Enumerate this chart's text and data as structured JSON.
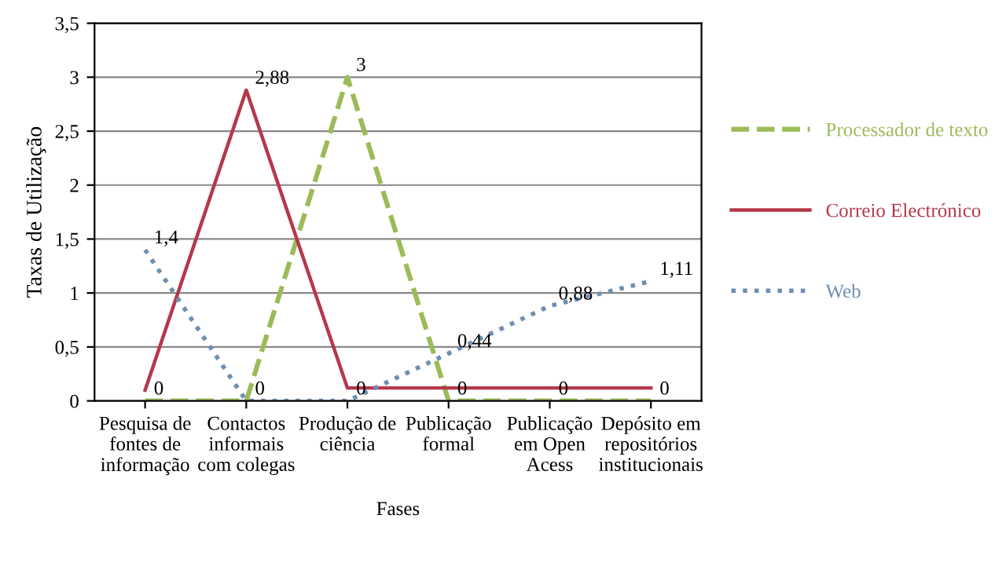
{
  "chart_data": {
    "type": "line",
    "xlabel": "Fases",
    "ylabel": "Taxas de Utilização",
    "categories": [
      "Pesquisa de\nfontes de\ninformação",
      "Contactos\ninformais\ncom colegas",
      "Produção de\nciência",
      "Publicação\nformal",
      "Publicação\nem Open\nAcess",
      "Depósito em\nrepositórios\ninstitucionais"
    ],
    "series": [
      {
        "name": "Processador de texto",
        "color": "#9bbb59",
        "line_style": "dashed",
        "values": [
          0,
          0,
          3,
          0,
          0,
          0
        ],
        "value_labels": [
          "0",
          null,
          "3",
          "0",
          "0",
          "0"
        ]
      },
      {
        "name": "Correio Electrónico",
        "color": "#b5384a",
        "line_style": "solid",
        "values": [
          0.1,
          2.88,
          0.12,
          0.12,
          0.12,
          0.12
        ],
        "value_labels": [
          null,
          "2,88",
          null,
          null,
          null,
          null
        ]
      },
      {
        "name": "Web",
        "color": "#6f8fb0",
        "line_style": "dotted",
        "values": [
          1.4,
          0,
          0,
          0.44,
          0.88,
          1.11
        ],
        "value_labels": [
          "1,4",
          "0",
          "0",
          "0,44",
          "0,88",
          "1,11"
        ]
      }
    ],
    "ylim": [
      0,
      3.5
    ],
    "yticks": [
      0,
      {
        "value": 0.5,
        "label": "0,5"
      },
      1,
      {
        "value": 1.5,
        "label": "1,5"
      },
      2,
      {
        "value": 2.5,
        "label": "2,5"
      },
      3,
      {
        "value": 3.5,
        "label": "3,5"
      }
    ],
    "grid": "y",
    "legend": "right"
  }
}
